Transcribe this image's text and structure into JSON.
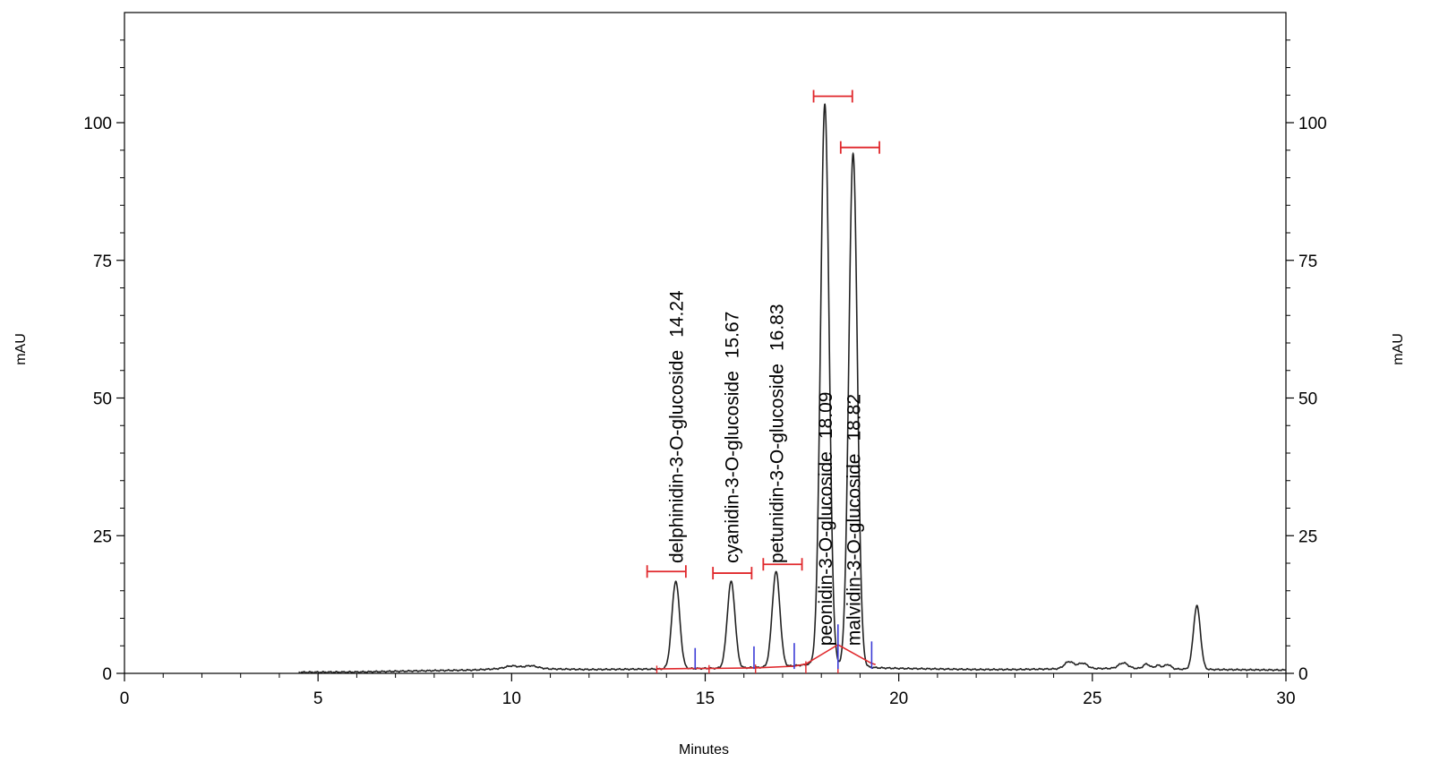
{
  "chart_data": {
    "type": "line",
    "title": "",
    "xlabel": "Minutes",
    "ylabel": "mAU",
    "ylabel_right": "mAU",
    "xlim": [
      0,
      30
    ],
    "ylim": [
      0,
      120
    ],
    "xticks": [
      0,
      5,
      10,
      15,
      20,
      25,
      30
    ],
    "yticks": [
      0,
      25,
      50,
      75,
      100
    ],
    "grid": false,
    "legend": "none",
    "colors": {
      "trace": "#222222",
      "integration": "#e0282c",
      "marker": "#3b3bd6"
    },
    "baseline": [
      [
        4.5,
        0.2
      ],
      [
        6,
        0.25
      ],
      [
        8,
        0.5
      ],
      [
        9,
        0.6
      ],
      [
        9.8,
        0.9
      ],
      [
        10.5,
        1.1
      ],
      [
        11,
        0.8
      ],
      [
        12,
        0.7
      ],
      [
        13,
        0.75
      ],
      [
        14,
        0.8
      ],
      [
        15,
        0.9
      ],
      [
        16,
        1.0
      ],
      [
        17,
        1.2
      ],
      [
        17.8,
        1.7
      ],
      [
        19.5,
        1.0
      ],
      [
        20,
        0.9
      ],
      [
        21,
        0.8
      ],
      [
        22,
        0.7
      ],
      [
        23,
        0.7
      ],
      [
        24,
        0.8
      ],
      [
        25.5,
        0.9
      ],
      [
        26.5,
        0.9
      ],
      [
        27,
        0.8
      ],
      [
        28,
        0.7
      ],
      [
        29,
        0.65
      ],
      [
        30,
        0.6
      ]
    ],
    "minor_peaks": [
      {
        "x": 10.0,
        "h": 0.4,
        "w": 0.15
      },
      {
        "x": 10.5,
        "h": 0.3,
        "w": 0.15
      },
      {
        "x": 24.4,
        "h": 1.3,
        "w": 0.12
      },
      {
        "x": 24.75,
        "h": 1.0,
        "w": 0.12
      },
      {
        "x": 25.8,
        "h": 1.0,
        "w": 0.12
      },
      {
        "x": 26.4,
        "h": 0.8,
        "w": 0.08
      },
      {
        "x": 26.7,
        "h": 0.6,
        "w": 0.08
      },
      {
        "x": 26.95,
        "h": 0.8,
        "w": 0.08
      },
      {
        "x": 27.7,
        "h": 11.5,
        "w": 0.09
      }
    ],
    "peaks": [
      {
        "name": "delphinidin-3-O-glucoside",
        "rt": "14.24",
        "x": 14.24,
        "height": 15.9,
        "w": 0.1,
        "label_y": 20,
        "range": [
          13.5,
          14.5
        ],
        "bar_y": 18.5,
        "marker_x": 14.74,
        "marker_top": 4.6
      },
      {
        "name": "cyanidin-3-O-glucoside",
        "rt": "15.67",
        "x": 15.67,
        "height": 15.7,
        "w": 0.1,
        "label_y": 20,
        "range": [
          15.2,
          16.2
        ],
        "bar_y": 18.2,
        "marker_x": 16.26,
        "marker_top": 4.9
      },
      {
        "name": "petunidin-3-O-glucoside",
        "rt": "16.83",
        "x": 16.83,
        "height": 17.3,
        "w": 0.1,
        "label_y": 20,
        "range": [
          16.5,
          17.5
        ],
        "bar_y": 19.8,
        "marker_x": 17.3,
        "marker_top": 5.5
      },
      {
        "name": "peonidin-3-O-glucoside",
        "rt": "18.09",
        "x": 18.09,
        "height": 101.8,
        "w": 0.11,
        "label_y": 5,
        "range": [
          17.8,
          18.8
        ],
        "bar_y": 104.8,
        "marker_x": 18.43,
        "marker_top": 8.9
      },
      {
        "name": "malvidin-3-O-glucoside",
        "rt": "18.82",
        "x": 18.82,
        "height": 93.2,
        "w": 0.11,
        "label_y": 5,
        "range": [
          18.5,
          19.5
        ],
        "bar_y": 95.5,
        "marker_x": 19.3,
        "marker_top": 5.8
      }
    ],
    "integration_baseline": [
      [
        13.75,
        0.8
      ],
      [
        14.74,
        0.9
      ],
      [
        15.1,
        0.9
      ],
      [
        16.26,
        1.0
      ],
      [
        16.3,
        1.0
      ],
      [
        17.3,
        1.3
      ],
      [
        17.6,
        1.7
      ],
      [
        18.43,
        5.2
      ],
      [
        19.3,
        1.8
      ],
      [
        19.4,
        1.6
      ]
    ],
    "drop_lines": [
      {
        "x": 13.75,
        "top": 1.4
      },
      {
        "x": 15.1,
        "top": 1.5
      },
      {
        "x": 16.3,
        "top": 1.6
      },
      {
        "x": 17.6,
        "top": 2.2
      },
      {
        "x": 18.43,
        "top": 5.2
      }
    ]
  }
}
